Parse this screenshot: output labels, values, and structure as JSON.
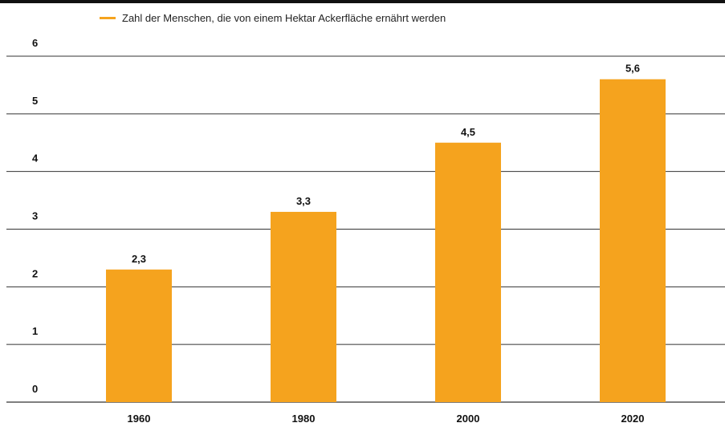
{
  "chart_data": {
    "type": "bar",
    "categories": [
      "1960",
      "1980",
      "2000",
      "2020"
    ],
    "series": [
      {
        "name": "Zahl der Menschen, die von einem Hektar Ackerfläche ernährt werden",
        "values": [
          2.3,
          3.3,
          4.5,
          5.6
        ],
        "value_labels": [
          "2,3",
          "3,3",
          "4,5",
          "5,6"
        ]
      }
    ],
    "y_ticks": [
      "0",
      "1",
      "2",
      "3",
      "4",
      "5",
      "6"
    ],
    "ylim": [
      0,
      6
    ],
    "grid": true,
    "legend_position": "top-left",
    "colors": {
      "bar": "#F5A31E",
      "grid": "#333333",
      "text": "#111111"
    }
  }
}
